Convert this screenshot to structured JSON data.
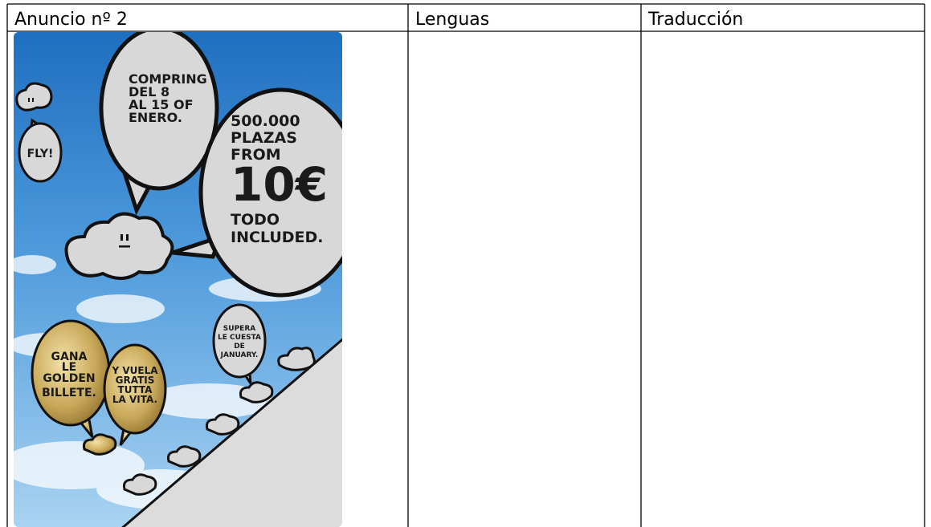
{
  "table": {
    "header": [
      "Anuncio nº 2",
      "Lenguas",
      "Traducción"
    ]
  },
  "poster": {
    "bubbles": [
      {
        "lines": [
          "COMPRING",
          "DEL 8",
          "AL 15 OF",
          "ENERO."
        ]
      },
      {
        "lines": [
          "500.000",
          "PLAZAS",
          "FROM",
          "10€",
          "TODO",
          "INCLUDED."
        ]
      },
      {
        "lines": [
          "FLY!"
        ]
      },
      {
        "lines": [
          "SUPERA",
          "LE CUESTA",
          "DE",
          "JANUARY."
        ]
      },
      {
        "lines": [
          "GANA",
          "LE",
          "GOLDEN",
          "BILLETE."
        ]
      },
      {
        "lines": [
          "Y VUELA",
          "GRATIS",
          "TUTTA",
          "LA VITA."
        ]
      }
    ]
  }
}
